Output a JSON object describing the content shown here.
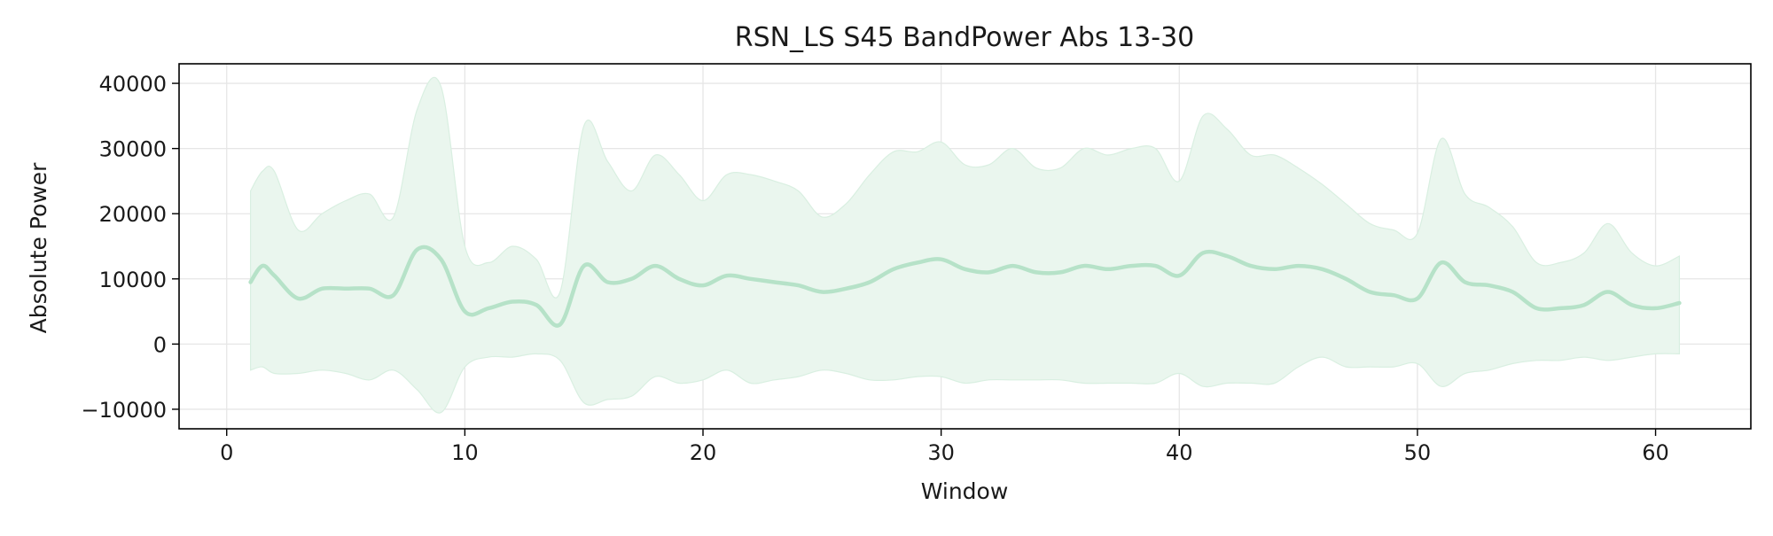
{
  "chart_data": {
    "type": "line",
    "title": "RSN_LS S45 BandPower Abs 13-30",
    "xlabel": "Window",
    "ylabel": "Absolute Power",
    "xlim": [
      -2,
      64
    ],
    "ylim": [
      -13000,
      43000
    ],
    "x_ticks": [
      0,
      10,
      20,
      30,
      40,
      50,
      60
    ],
    "y_ticks": [
      -10000,
      0,
      10000,
      20000,
      30000,
      40000
    ],
    "x_tick_labels": [
      "0",
      "10",
      "20",
      "30",
      "40",
      "50",
      "60"
    ],
    "y_tick_labels": [
      "−10000",
      "0",
      "10000",
      "20000",
      "30000",
      "40000"
    ],
    "grid": true,
    "colors": {
      "line": "#b6e2c8",
      "band": "#eaf6ee",
      "band_edge": "#d9efe1",
      "grid": "#e6e6e6"
    },
    "series": [
      {
        "x": [
          1,
          1.5,
          2,
          3,
          4,
          5,
          6,
          7,
          8,
          9,
          10,
          11,
          12,
          13,
          14,
          15,
          16,
          17,
          18,
          19,
          20,
          21,
          22,
          23,
          24,
          25,
          26,
          27,
          28,
          29,
          30,
          31,
          32,
          33,
          34,
          35,
          36,
          37,
          38,
          39,
          40,
          41,
          42,
          43,
          44,
          45,
          46,
          47,
          48,
          49,
          50,
          51,
          52,
          53,
          54,
          55,
          56,
          57,
          58,
          59,
          60,
          61
        ],
        "mean": [
          9500,
          12000,
          10500,
          7000,
          8500,
          8500,
          8500,
          7500,
          14500,
          13000,
          5000,
          5500,
          6500,
          6000,
          3000,
          12000,
          9500,
          10000,
          12000,
          10000,
          9000,
          10500,
          10000,
          9500,
          9000,
          8000,
          8500,
          9500,
          11500,
          12500,
          13000,
          11500,
          11000,
          12000,
          11000,
          11000,
          12000,
          11500,
          12000,
          12000,
          10500,
          14000,
          13500,
          12000,
          11500,
          12000,
          11500,
          10000,
          8000,
          7500,
          7000,
          12500,
          9500,
          9000,
          8000,
          5500,
          5500,
          6000,
          8000,
          6000,
          5500,
          6300
        ],
        "upper": [
          23500,
          26500,
          26500,
          17500,
          20000,
          22000,
          23000,
          19500,
          36000,
          39500,
          15000,
          12500,
          15000,
          13000,
          8000,
          33500,
          28000,
          23500,
          29000,
          26000,
          22000,
          26000,
          26000,
          25000,
          23500,
          19500,
          21500,
          26000,
          29500,
          29500,
          31000,
          27500,
          27500,
          30000,
          27000,
          27000,
          30000,
          29000,
          30000,
          30000,
          25000,
          35000,
          33000,
          29000,
          29000,
          27000,
          24500,
          21500,
          18500,
          17500,
          17000,
          31500,
          23000,
          21000,
          18000,
          12500,
          12500,
          14000,
          18500,
          14000,
          12000,
          13500
        ],
        "lower": [
          -4000,
          -3500,
          -4500,
          -4500,
          -4000,
          -4500,
          -5500,
          -4000,
          -7000,
          -10500,
          -3500,
          -2000,
          -2000,
          -1500,
          -2500,
          -9000,
          -8500,
          -8000,
          -5000,
          -6000,
          -5500,
          -4000,
          -6000,
          -5500,
          -5000,
          -4000,
          -4500,
          -5500,
          -5500,
          -5000,
          -5000,
          -6000,
          -5500,
          -5500,
          -5500,
          -5500,
          -6000,
          -6000,
          -6000,
          -6000,
          -4500,
          -6500,
          -6000,
          -6000,
          -6000,
          -3500,
          -2000,
          -3500,
          -3500,
          -3500,
          -3000,
          -6500,
          -4500,
          -4000,
          -3000,
          -2500,
          -2500,
          -2000,
          -2500,
          -2000,
          -1500,
          -1500
        ]
      }
    ]
  }
}
